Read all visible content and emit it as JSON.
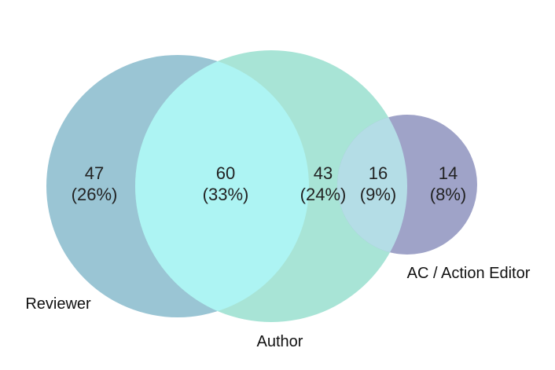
{
  "diagram": {
    "type": "venn3",
    "sets": [
      {
        "key": "reviewer",
        "label": "Reviewer",
        "color": "#9ac5d4"
      },
      {
        "key": "author",
        "label": "Author",
        "color": "#a8e4d6"
      },
      {
        "key": "ac",
        "label": "AC / Action Editor",
        "color": "#9fa3c8"
      }
    ],
    "overlap_colors": {
      "reviewer_author": "#adf4f3",
      "author_ac": "#b4dde6"
    },
    "regions": [
      {
        "key": "reviewer_only",
        "count": "47",
        "percent": "(26%)"
      },
      {
        "key": "reviewer_author",
        "count": "60",
        "percent": "(33%)"
      },
      {
        "key": "author_only",
        "count": "43",
        "percent": "(24%)"
      },
      {
        "key": "author_ac",
        "count": "16",
        "percent": "(9%)"
      },
      {
        "key": "ac_only",
        "count": "14",
        "percent": "(8%)"
      }
    ]
  }
}
